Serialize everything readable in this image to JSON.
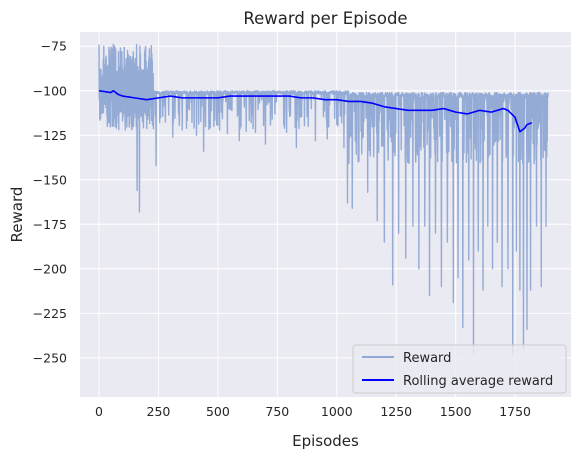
{
  "chart_data": {
    "type": "line",
    "title": "Reward per Episode",
    "xlabel": "Episodes",
    "ylabel": "Reward",
    "xlim": [
      -80,
      1985
    ],
    "ylim": [
      -272,
      -67
    ],
    "xticks": [
      0,
      250,
      500,
      750,
      1000,
      1250,
      1500,
      1750
    ],
    "yticks": [
      -75,
      -100,
      -125,
      -150,
      -175,
      -200,
      -225,
      -250
    ],
    "grid": true,
    "legend_position": "lower-right",
    "series": [
      {
        "name": "Reward",
        "color": "#8fa8d4",
        "style": "noisy-episodes",
        "x_range": [
          0,
          1890
        ],
        "baseline": -101,
        "spikes": [
          {
            "x": 5,
            "y": -88
          },
          {
            "x": 20,
            "y": -75
          },
          {
            "x": 35,
            "y": -120
          },
          {
            "x": 45,
            "y": -77
          },
          {
            "x": 60,
            "y": -74
          },
          {
            "x": 75,
            "y": -118
          },
          {
            "x": 90,
            "y": -76
          },
          {
            "x": 110,
            "y": -122
          },
          {
            "x": 125,
            "y": -80
          },
          {
            "x": 145,
            "y": -120
          },
          {
            "x": 160,
            "y": -156
          },
          {
            "x": 170,
            "y": -168
          },
          {
            "x": 195,
            "y": -76
          },
          {
            "x": 215,
            "y": -85
          },
          {
            "x": 240,
            "y": -142
          },
          {
            "x": 255,
            "y": -118
          },
          {
            "x": 310,
            "y": -126
          },
          {
            "x": 350,
            "y": -122
          },
          {
            "x": 410,
            "y": -125
          },
          {
            "x": 440,
            "y": -134
          },
          {
            "x": 495,
            "y": -119
          },
          {
            "x": 540,
            "y": -124
          },
          {
            "x": 590,
            "y": -128
          },
          {
            "x": 640,
            "y": -118
          },
          {
            "x": 700,
            "y": -130
          },
          {
            "x": 780,
            "y": -121
          },
          {
            "x": 830,
            "y": -132
          },
          {
            "x": 880,
            "y": -120
          },
          {
            "x": 910,
            "y": -128
          },
          {
            "x": 960,
            "y": -127
          },
          {
            "x": 1000,
            "y": -119
          },
          {
            "x": 1030,
            "y": -132
          },
          {
            "x": 1045,
            "y": -163
          },
          {
            "x": 1065,
            "y": -166
          },
          {
            "x": 1090,
            "y": -140
          },
          {
            "x": 1130,
            "y": -157
          },
          {
            "x": 1170,
            "y": -173
          },
          {
            "x": 1200,
            "y": -185
          },
          {
            "x": 1235,
            "y": -209
          },
          {
            "x": 1260,
            "y": -180
          },
          {
            "x": 1290,
            "y": -194
          },
          {
            "x": 1320,
            "y": -176
          },
          {
            "x": 1345,
            "y": -200
          },
          {
            "x": 1370,
            "y": -176
          },
          {
            "x": 1390,
            "y": -215
          },
          {
            "x": 1415,
            "y": -180
          },
          {
            "x": 1440,
            "y": -210
          },
          {
            "x": 1465,
            "y": -185
          },
          {
            "x": 1490,
            "y": -219
          },
          {
            "x": 1510,
            "y": -205
          },
          {
            "x": 1530,
            "y": -233
          },
          {
            "x": 1555,
            "y": -195
          },
          {
            "x": 1575,
            "y": -248
          },
          {
            "x": 1595,
            "y": -190
          },
          {
            "x": 1615,
            "y": -212
          },
          {
            "x": 1635,
            "y": -176
          },
          {
            "x": 1655,
            "y": -200
          },
          {
            "x": 1675,
            "y": -185
          },
          {
            "x": 1695,
            "y": -210
          },
          {
            "x": 1720,
            "y": -200
          },
          {
            "x": 1740,
            "y": -248
          },
          {
            "x": 1755,
            "y": -190
          },
          {
            "x": 1770,
            "y": -212
          },
          {
            "x": 1785,
            "y": -245
          },
          {
            "x": 1800,
            "y": -234
          },
          {
            "x": 1815,
            "y": -212
          },
          {
            "x": 1840,
            "y": -176
          },
          {
            "x": 1860,
            "y": -210
          },
          {
            "x": 1880,
            "y": -176
          }
        ]
      },
      {
        "name": "Rolling average reward",
        "color": "#0000ff",
        "x": [
          0,
          50,
          60,
          80,
          100,
          150,
          200,
          250,
          300,
          350,
          400,
          450,
          500,
          550,
          600,
          650,
          700,
          750,
          800,
          850,
          900,
          950,
          1000,
          1050,
          1100,
          1150,
          1200,
          1250,
          1300,
          1350,
          1400,
          1450,
          1500,
          1550,
          1600,
          1650,
          1700,
          1720,
          1750,
          1770,
          1790,
          1800,
          1820
        ],
        "y": [
          -100,
          -101,
          -100,
          -102,
          -103,
          -104,
          -105,
          -104,
          -103,
          -104,
          -104,
          -104,
          -104,
          -103,
          -103,
          -103,
          -103,
          -103,
          -103,
          -104,
          -104,
          -105,
          -105,
          -106,
          -106,
          -107,
          -109,
          -110,
          -111,
          -111,
          -111,
          -110,
          -112,
          -113,
          -111,
          -112,
          -110,
          -111,
          -115,
          -123,
          -121,
          -119,
          -118
        ]
      }
    ]
  }
}
